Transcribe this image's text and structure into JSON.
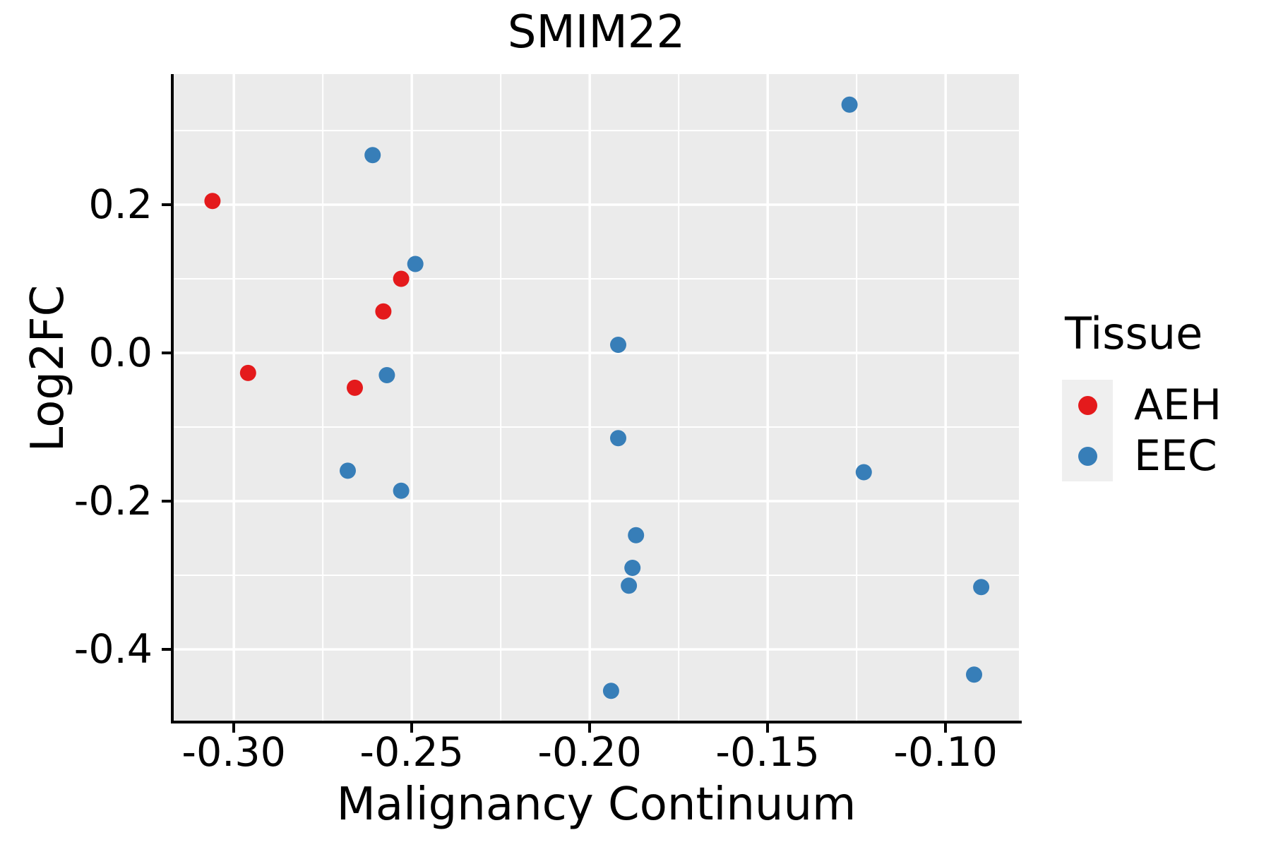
{
  "chart_data": {
    "type": "scatter",
    "title": "SMIM22",
    "xlabel": "Malignancy Continuum",
    "ylabel": "Log2FC",
    "legend_title": "Tissue",
    "legend_position": "right",
    "panel_background": "#EBEBEB",
    "grid_color": "#FFFFFF",
    "grid": true,
    "xlim": [
      -0.3169,
      -0.0794
    ],
    "ylim": [
      -0.4962,
      0.3762
    ],
    "x_ticks": {
      "values": [
        -0.3,
        -0.25,
        -0.2,
        -0.15,
        -0.1
      ],
      "labels": [
        "-0.30",
        "-0.25",
        "-0.20",
        "-0.15",
        "-0.10"
      ]
    },
    "y_ticks": {
      "values": [
        0.2,
        0.0,
        -0.2,
        -0.4
      ],
      "labels": [
        "0.2",
        "0.0",
        "-0.2",
        "-0.4"
      ]
    },
    "x_minor_gridlines": [
      -0.275,
      -0.225,
      -0.175,
      -0.125
    ],
    "y_minor_gridlines": [
      0.3,
      0.1,
      -0.1,
      -0.3
    ],
    "point_radius_px": 11.5,
    "series": [
      {
        "name": "AEH",
        "color": "#E41A1C",
        "points": [
          [
            -0.306,
            0.205
          ],
          [
            -0.296,
            -0.027
          ],
          [
            -0.266,
            -0.047
          ],
          [
            -0.258,
            0.056
          ],
          [
            -0.253,
            0.1
          ]
        ]
      },
      {
        "name": "EEC",
        "color": "#377EB8",
        "points": [
          [
            -0.261,
            0.267
          ],
          [
            -0.257,
            -0.03
          ],
          [
            -0.253,
            -0.186
          ],
          [
            -0.249,
            0.12
          ],
          [
            -0.268,
            -0.159
          ],
          [
            -0.192,
            0.011
          ],
          [
            -0.192,
            -0.115
          ],
          [
            -0.187,
            -0.246
          ],
          [
            -0.188,
            -0.29
          ],
          [
            -0.189,
            -0.314
          ],
          [
            -0.194,
            -0.456
          ],
          [
            -0.127,
            0.335
          ],
          [
            -0.123,
            -0.161
          ],
          [
            -0.09,
            -0.316
          ],
          [
            -0.092,
            -0.434
          ]
        ]
      }
    ]
  }
}
